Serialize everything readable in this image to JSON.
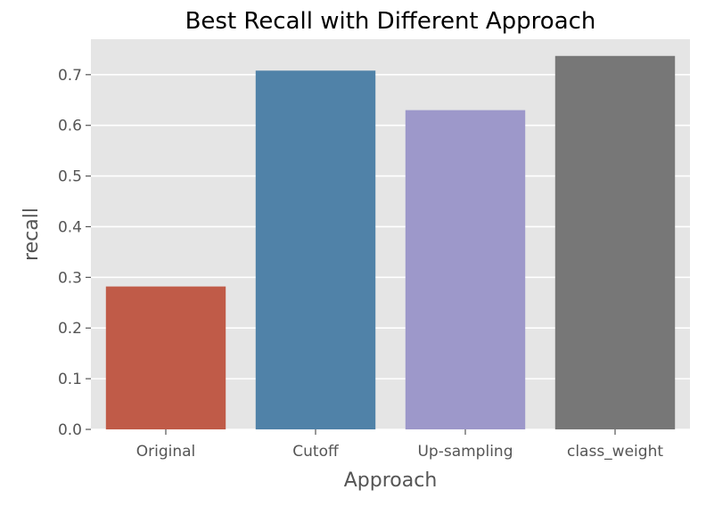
{
  "chart_data": {
    "type": "bar",
    "title": "Best Recall with Different Approach",
    "xlabel": "Approach",
    "ylabel": "recall",
    "categories": [
      "Original",
      "Cutoff",
      "Up-sampling",
      "class_weight"
    ],
    "values": [
      0.282,
      0.708,
      0.63,
      0.737
    ],
    "colors": [
      "#C05B48",
      "#5082A8",
      "#9D98CA",
      "#777777"
    ],
    "ylim": [
      0,
      0.77
    ],
    "yticks": [
      0.0,
      0.1,
      0.2,
      0.3,
      0.4,
      0.5,
      0.6,
      0.7
    ],
    "ytick_labels": [
      "0.0",
      "0.1",
      "0.2",
      "0.3",
      "0.4",
      "0.5",
      "0.6",
      "0.7"
    ],
    "grid": true,
    "style": {
      "plot_background": "#E5E5E5",
      "grid_color": "#FFFFFF",
      "text_color": "#555555",
      "title_color": "#000000"
    }
  }
}
